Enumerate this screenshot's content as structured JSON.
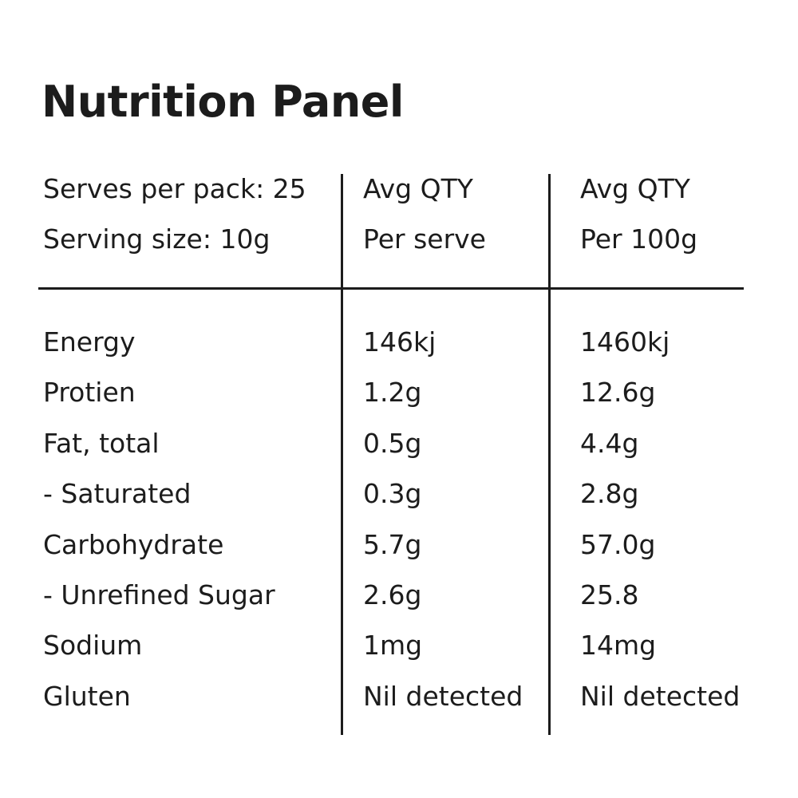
{
  "title": "Nutrition Panel",
  "header": {
    "col1": [
      "Serves per pack: 25",
      "Serving size: 10g"
    ],
    "col2": [
      "Avg QTY",
      "Per serve"
    ],
    "col3": [
      "Avg QTY",
      "Per 100g"
    ]
  },
  "rows": [
    {
      "nutrient": "Energy",
      "per_serve": "146kj",
      "per_100g": "1460kj"
    },
    {
      "nutrient": "Protien",
      "per_serve": "1.2g",
      "per_100g": "12.6g"
    },
    {
      "nutrient": "Fat, total",
      "per_serve": "0.5g",
      "per_100g": "4.4g"
    },
    {
      "nutrient": "- Saturated",
      "per_serve": "0.3g",
      "per_100g": "2.8g"
    },
    {
      "nutrient": "Carbohydrate",
      "per_serve": "5.7g",
      "per_100g": "57.0g"
    },
    {
      "nutrient": "- Unrefined Sugar",
      "per_serve": "2.6g",
      "per_100g": "25.8"
    },
    {
      "nutrient": "Sodium",
      "per_serve": "1mg",
      "per_100g": "14mg"
    },
    {
      "nutrient": "Gluten",
      "per_serve": "Nil detected",
      "per_100g": "Nil detected"
    }
  ]
}
